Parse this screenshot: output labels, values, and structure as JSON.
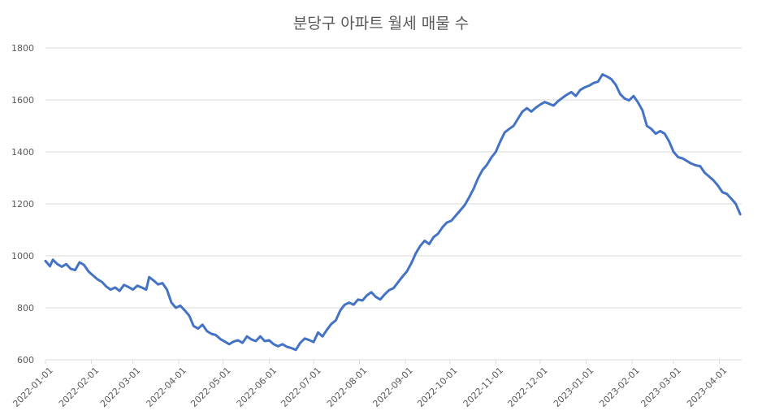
{
  "chart_data": {
    "type": "line",
    "title": "분당구 아파트 월세 매물 수",
    "xlabel": "",
    "ylabel": "",
    "ylim": [
      600,
      1800
    ],
    "yticks": [
      600,
      800,
      1000,
      1200,
      1400,
      1600,
      1800
    ],
    "xlim": [
      "2022-01-01",
      "2023-04-16"
    ],
    "xticks": [
      "2022-01-01",
      "2022-02-01",
      "2022-03-01",
      "2022-04-01",
      "2022-05-01",
      "2022-06-01",
      "2022-07-01",
      "2022-08-01",
      "2022-09-01",
      "2022-10-01",
      "2022-11-01",
      "2022-12-01",
      "2023-01-01",
      "2023-02-01",
      "2023-03-01",
      "2023-04-01"
    ],
    "grid": "horizontal",
    "legend": "none",
    "colors": {
      "series": "#4472c4",
      "grid": "#d9d9d9",
      "text": "#595959"
    },
    "series": [
      {
        "points": [
          [
            "2022-01-01",
            980
          ],
          [
            "2022-01-04",
            960
          ],
          [
            "2022-01-06",
            985
          ],
          [
            "2022-01-09",
            968
          ],
          [
            "2022-01-12",
            958
          ],
          [
            "2022-01-15",
            968
          ],
          [
            "2022-01-18",
            950
          ],
          [
            "2022-01-21",
            945
          ],
          [
            "2022-01-24",
            975
          ],
          [
            "2022-01-27",
            965
          ],
          [
            "2022-01-30",
            940
          ],
          [
            "2022-02-02",
            925
          ],
          [
            "2022-02-05",
            910
          ],
          [
            "2022-02-08",
            900
          ],
          [
            "2022-02-11",
            882
          ],
          [
            "2022-02-14",
            870
          ],
          [
            "2022-02-17",
            878
          ],
          [
            "2022-02-20",
            865
          ],
          [
            "2022-02-23",
            888
          ],
          [
            "2022-02-26",
            880
          ],
          [
            "2022-03-01",
            870
          ],
          [
            "2022-03-04",
            885
          ],
          [
            "2022-03-07",
            878
          ],
          [
            "2022-03-10",
            870
          ],
          [
            "2022-03-12",
            918
          ],
          [
            "2022-03-15",
            905
          ],
          [
            "2022-03-18",
            890
          ],
          [
            "2022-03-21",
            895
          ],
          [
            "2022-03-24",
            870
          ],
          [
            "2022-03-27",
            820
          ],
          [
            "2022-03-30",
            800
          ],
          [
            "2022-04-02",
            808
          ],
          [
            "2022-04-05",
            790
          ],
          [
            "2022-04-08",
            770
          ],
          [
            "2022-04-11",
            730
          ],
          [
            "2022-04-14",
            720
          ],
          [
            "2022-04-17",
            735
          ],
          [
            "2022-04-20",
            710
          ],
          [
            "2022-04-23",
            700
          ],
          [
            "2022-04-26",
            695
          ],
          [
            "2022-04-29",
            680
          ],
          [
            "2022-05-02",
            670
          ],
          [
            "2022-05-05",
            660
          ],
          [
            "2022-05-08",
            670
          ],
          [
            "2022-05-11",
            675
          ],
          [
            "2022-05-14",
            665
          ],
          [
            "2022-05-17",
            690
          ],
          [
            "2022-05-20",
            678
          ],
          [
            "2022-05-23",
            672
          ],
          [
            "2022-05-26",
            690
          ],
          [
            "2022-05-29",
            672
          ],
          [
            "2022-06-01",
            675
          ],
          [
            "2022-06-04",
            660
          ],
          [
            "2022-06-07",
            652
          ],
          [
            "2022-06-10",
            660
          ],
          [
            "2022-06-13",
            650
          ],
          [
            "2022-06-16",
            645
          ],
          [
            "2022-06-19",
            638
          ],
          [
            "2022-06-22",
            665
          ],
          [
            "2022-06-25",
            682
          ],
          [
            "2022-06-28",
            676
          ],
          [
            "2022-07-01",
            668
          ],
          [
            "2022-07-04",
            705
          ],
          [
            "2022-07-07",
            690
          ],
          [
            "2022-07-10",
            715
          ],
          [
            "2022-07-13",
            738
          ],
          [
            "2022-07-16",
            752
          ],
          [
            "2022-07-19",
            790
          ],
          [
            "2022-07-22",
            812
          ],
          [
            "2022-07-25",
            820
          ],
          [
            "2022-07-28",
            812
          ],
          [
            "2022-07-31",
            832
          ],
          [
            "2022-08-03",
            828
          ],
          [
            "2022-08-06",
            848
          ],
          [
            "2022-08-09",
            860
          ],
          [
            "2022-08-12",
            842
          ],
          [
            "2022-08-15",
            832
          ],
          [
            "2022-08-18",
            852
          ],
          [
            "2022-08-21",
            868
          ],
          [
            "2022-08-24",
            876
          ],
          [
            "2022-08-27",
            898
          ],
          [
            "2022-08-30",
            920
          ],
          [
            "2022-09-02",
            940
          ],
          [
            "2022-09-05",
            972
          ],
          [
            "2022-09-08",
            1010
          ],
          [
            "2022-09-11",
            1038
          ],
          [
            "2022-09-14",
            1058
          ],
          [
            "2022-09-17",
            1045
          ],
          [
            "2022-09-20",
            1072
          ],
          [
            "2022-09-23",
            1085
          ],
          [
            "2022-09-26",
            1110
          ],
          [
            "2022-09-29",
            1128
          ],
          [
            "2022-10-02",
            1135
          ],
          [
            "2022-10-05",
            1155
          ],
          [
            "2022-10-08",
            1175
          ],
          [
            "2022-10-11",
            1195
          ],
          [
            "2022-10-14",
            1225
          ],
          [
            "2022-10-17",
            1258
          ],
          [
            "2022-10-20",
            1298
          ],
          [
            "2022-10-23",
            1330
          ],
          [
            "2022-10-26",
            1350
          ],
          [
            "2022-10-29",
            1378
          ],
          [
            "2022-11-01",
            1400
          ],
          [
            "2022-11-04",
            1440
          ],
          [
            "2022-11-07",
            1475
          ],
          [
            "2022-11-10",
            1488
          ],
          [
            "2022-11-13",
            1500
          ],
          [
            "2022-11-16",
            1528
          ],
          [
            "2022-11-19",
            1555
          ],
          [
            "2022-11-22",
            1568
          ],
          [
            "2022-11-25",
            1555
          ],
          [
            "2022-11-28",
            1570
          ],
          [
            "2022-12-01",
            1582
          ],
          [
            "2022-12-04",
            1592
          ],
          [
            "2022-12-07",
            1585
          ],
          [
            "2022-12-10",
            1578
          ],
          [
            "2022-12-13",
            1595
          ],
          [
            "2022-12-16",
            1608
          ],
          [
            "2022-12-19",
            1620
          ],
          [
            "2022-12-22",
            1630
          ],
          [
            "2022-12-25",
            1615
          ],
          [
            "2022-12-28",
            1638
          ],
          [
            "2022-12-31",
            1648
          ],
          [
            "2023-01-03",
            1655
          ],
          [
            "2023-01-06",
            1665
          ],
          [
            "2023-01-09",
            1670
          ],
          [
            "2023-01-12",
            1698
          ],
          [
            "2023-01-15",
            1690
          ],
          [
            "2023-01-18",
            1680
          ],
          [
            "2023-01-21",
            1658
          ],
          [
            "2023-01-24",
            1622
          ],
          [
            "2023-01-27",
            1605
          ],
          [
            "2023-01-30",
            1598
          ],
          [
            "2023-02-02",
            1615
          ],
          [
            "2023-02-05",
            1590
          ],
          [
            "2023-02-08",
            1560
          ],
          [
            "2023-02-11",
            1500
          ],
          [
            "2023-02-14",
            1488
          ],
          [
            "2023-02-17",
            1470
          ],
          [
            "2023-02-20",
            1480
          ],
          [
            "2023-02-23",
            1470
          ],
          [
            "2023-02-26",
            1440
          ],
          [
            "2023-03-01",
            1400
          ],
          [
            "2023-03-04",
            1380
          ],
          [
            "2023-03-07",
            1375
          ],
          [
            "2023-03-10",
            1365
          ],
          [
            "2023-03-13",
            1355
          ],
          [
            "2023-03-16",
            1348
          ],
          [
            "2023-03-19",
            1345
          ],
          [
            "2023-03-22",
            1320
          ],
          [
            "2023-03-25",
            1305
          ],
          [
            "2023-03-28",
            1290
          ],
          [
            "2023-03-31",
            1270
          ],
          [
            "2023-04-03",
            1245
          ],
          [
            "2023-04-06",
            1238
          ],
          [
            "2023-04-09",
            1220
          ],
          [
            "2023-04-12",
            1200
          ],
          [
            "2023-04-15",
            1160
          ]
        ]
      }
    ]
  }
}
